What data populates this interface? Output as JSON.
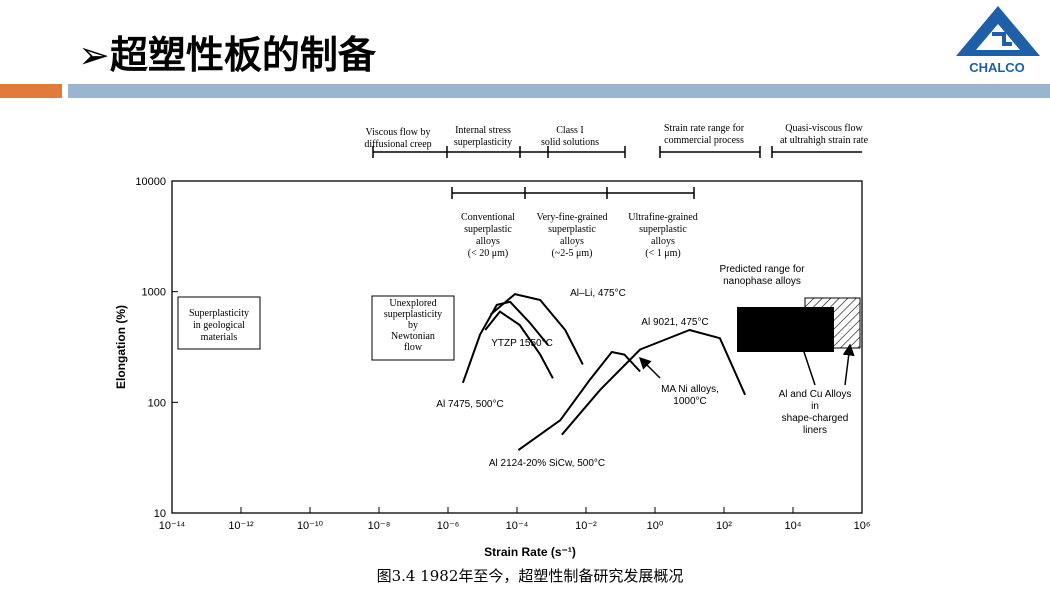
{
  "header": {
    "title": "➢超塑性板的制备",
    "logo": "CHALCO"
  },
  "caption": "图3.4 1982年至今，超塑性制备研究发展概况",
  "chart_data": {
    "type": "line",
    "x_label": "Strain Rate (s⁻¹)",
    "y_label": "Elongation (%)",
    "x_scale": "log",
    "y_scale": "log",
    "xlim": [
      1e-14,
      1000000.0
    ],
    "ylim": [
      10,
      10000
    ],
    "xticks": [
      {
        "value": 1e-14,
        "label": "10⁻¹⁴"
      },
      {
        "value": 1e-12,
        "label": "10⁻¹²"
      },
      {
        "value": 1e-10,
        "label": "10⁻¹⁰"
      },
      {
        "value": 1e-08,
        "label": "10⁻⁸"
      },
      {
        "value": 1e-06,
        "label": "10⁻⁶"
      },
      {
        "value": 0.0001,
        "label": "10⁻⁴"
      },
      {
        "value": 0.01,
        "label": "10⁻²"
      },
      {
        "value": 1,
        "label": "10⁰"
      },
      {
        "value": 100,
        "label": "10²"
      },
      {
        "value": 10000,
        "label": "10⁴"
      },
      {
        "value": 1000000,
        "label": "10⁶"
      }
    ],
    "yticks": [
      10,
      100,
      1000,
      10000
    ],
    "series": [
      {
        "name": "Al 7475, 500°C",
        "color": "#000000",
        "x": [
          2.7e-06,
          8.5e-06,
          2.6e-05,
          6.3e-05,
          0.00024,
          0.00079
        ],
        "values": [
          150,
          410,
          760,
          810,
          520,
          330
        ]
      },
      {
        "name": "YTZP 1550°C",
        "color": "#000000",
        "x": [
          1.2e-05,
          3.2e-05,
          0.00012,
          0.00047,
          0.0011
        ],
        "values": [
          450,
          660,
          500,
          270,
          165
        ]
      },
      {
        "name": "Al–Li, 475°C",
        "color": "#000000",
        "x": [
          1.7e-05,
          8.7e-05,
          0.00047,
          0.0025,
          0.0081
        ],
        "values": [
          620,
          950,
          840,
          450,
          220
        ]
      },
      {
        "name": "Al 2124-20% SiCw, 500°C",
        "color": "#000000",
        "x": [
          0.00011,
          0.0018,
          0.013,
          0.056,
          0.13,
          0.37
        ],
        "values": [
          37,
          69,
          160,
          285,
          270,
          190
        ]
      },
      {
        "name": "Al 9021, 475°C",
        "color": "#000000",
        "x": [
          0.002,
          0.026,
          0.37,
          10,
          76,
          410
        ],
        "values": [
          51,
          130,
          300,
          450,
          380,
          117
        ]
      }
    ],
    "annotations": [
      [
        "Viscous flow by",
        "diffusional creep"
      ],
      [
        "Internal stress",
        "superplasticity"
      ],
      [
        "Class I",
        "solid solutions"
      ],
      [
        "Strain rate range for",
        "commercial process"
      ],
      [
        "Quasi-viscous flow",
        "at ultrahigh strain rate"
      ],
      [
        "Conventional",
        "superplastic",
        "alloys",
        "(< 20 μm)"
      ],
      [
        "Very-fine-grained",
        "superplastic",
        "alloys",
        "(~2-5 μm)"
      ],
      [
        "Ultrafine-grained",
        "superplastic",
        "alloys",
        "(< 1 μm)"
      ],
      [
        "Superplasticity",
        "in geological",
        "materials"
      ],
      [
        "Unexplored",
        "superplasticity",
        "by",
        "Newtonian",
        "flow"
      ],
      [
        "Predicted range for",
        "nanophase alloys"
      ],
      [
        "MA Ni alloys,",
        "1000°C"
      ],
      [
        "Al and Cu Alloys",
        "in",
        "shape-charged",
        "liners"
      ]
    ]
  }
}
